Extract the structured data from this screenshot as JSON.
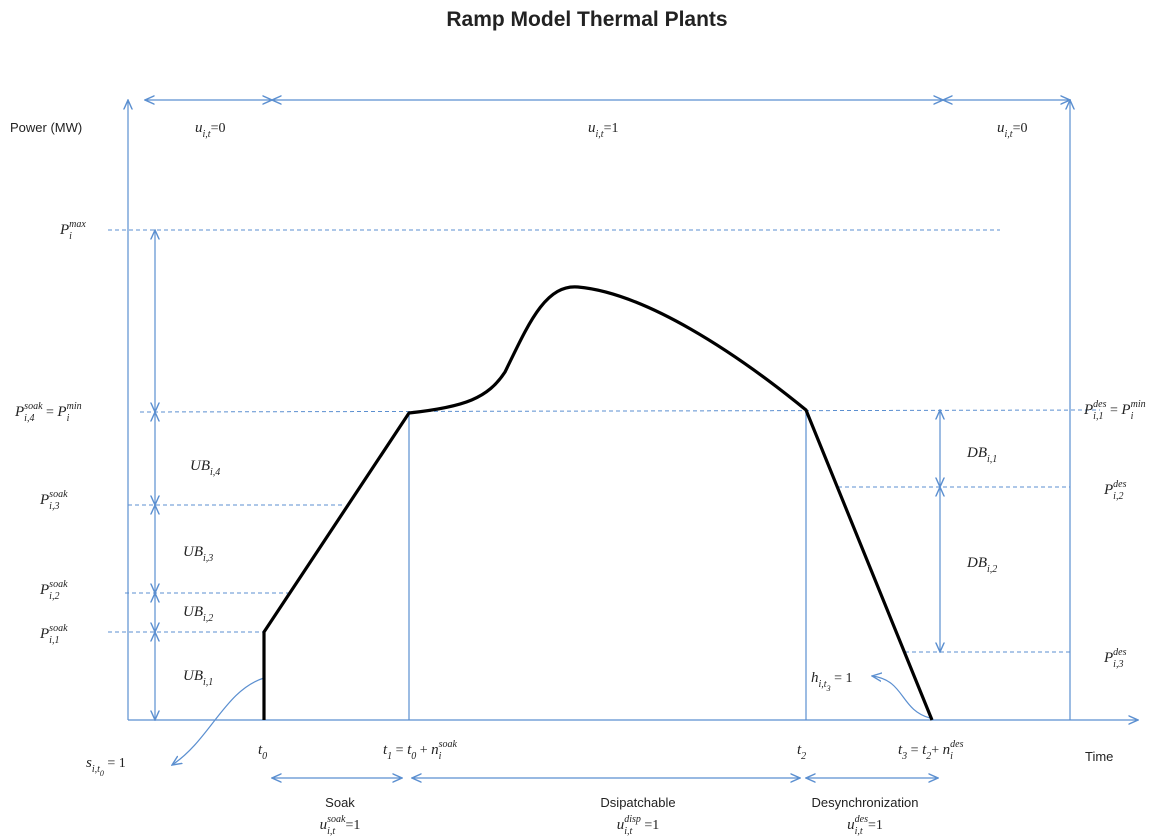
{
  "title": "Ramp Model Thermal Plants",
  "axis": {
    "y_label": "Power (MW)",
    "x_label": "Time"
  },
  "labels": {
    "u_off_before": [
      {
        "base": "u",
        "sub": "i,t"
      },
      "=0"
    ],
    "u_on": [
      {
        "base": "u",
        "sub": "i,t"
      },
      "=1"
    ],
    "u_off_after": [
      {
        "base": "u",
        "sub": "i,t"
      },
      "=0"
    ],
    "p_max": [
      {
        "base": "P",
        "sub": "i",
        "sup": "max"
      }
    ],
    "p_soak_4": [
      {
        "base": "P",
        "sub": "i,4",
        "sup": "soak"
      },
      " = ",
      {
        "base": "P",
        "sub": "i",
        "sup": "min"
      }
    ],
    "p_soak_3": [
      {
        "base": "P",
        "sub": "i,3",
        "sup": "soak"
      }
    ],
    "p_soak_2": [
      {
        "base": "P",
        "sub": "i,2",
        "sup": "soak"
      }
    ],
    "p_soak_1": [
      {
        "base": "P",
        "sub": "i,1",
        "sup": "soak"
      }
    ],
    "ub_4": [
      {
        "base": "UB",
        "sub": "i,4"
      }
    ],
    "ub_3": [
      {
        "base": "UB",
        "sub": "i,3"
      }
    ],
    "ub_2": [
      {
        "base": "UB",
        "sub": "i,2"
      }
    ],
    "ub_1": [
      {
        "base": "UB",
        "sub": "i,1"
      }
    ],
    "p_des_1": [
      {
        "base": "P",
        "sub": "i,1",
        "sup": "des"
      },
      " = ",
      {
        "base": "P",
        "sub": "i",
        "sup": "min"
      }
    ],
    "p_des_2": [
      {
        "base": "P",
        "sub": "i,2",
        "sup": "des"
      }
    ],
    "p_des_3": [
      {
        "base": "P",
        "sub": "i,3",
        "sup": "des"
      }
    ],
    "db_1": [
      {
        "base": "DB",
        "sub": "i,1"
      }
    ],
    "db_2": [
      {
        "base": "DB",
        "sub": "i,2"
      }
    ],
    "h_indicator": [
      {
        "base": "h",
        "sub": "i,t",
        "subsub": "3"
      },
      " = 1"
    ],
    "s_indicator": [
      {
        "base": "s",
        "sub": "i,t",
        "subsub": "0"
      },
      " = 1"
    ],
    "t0": [
      {
        "base": "t",
        "sub": "0"
      }
    ],
    "t1": [
      {
        "base": "t",
        "sub": "1"
      },
      " = ",
      {
        "base": "t",
        "sub": "0"
      },
      " + ",
      {
        "base": "n",
        "sub": "i",
        "sup": "soak"
      }
    ],
    "t2": [
      {
        "base": "t",
        "sub": "2"
      }
    ],
    "t3": [
      {
        "base": "t",
        "sub": "3"
      },
      " = ",
      {
        "base": "t",
        "sub": "2"
      },
      "+ ",
      {
        "base": "n",
        "sub": "i",
        "sup": "des"
      }
    ]
  },
  "phases": [
    {
      "name": "Soak",
      "status": [
        {
          "base": "u",
          "sub": "i,t",
          "sup": "soak"
        },
        "=1"
      ]
    },
    {
      "name": "Dsipatchable",
      "status": [
        {
          "base": "u",
          "sub": "i,t",
          "sup": "disp"
        },
        " =1"
      ]
    },
    {
      "name": "Desynchronization",
      "status": [
        {
          "base": "u",
          "sub": "i,t",
          "sup": "des"
        },
        "=1"
      ]
    }
  ]
}
